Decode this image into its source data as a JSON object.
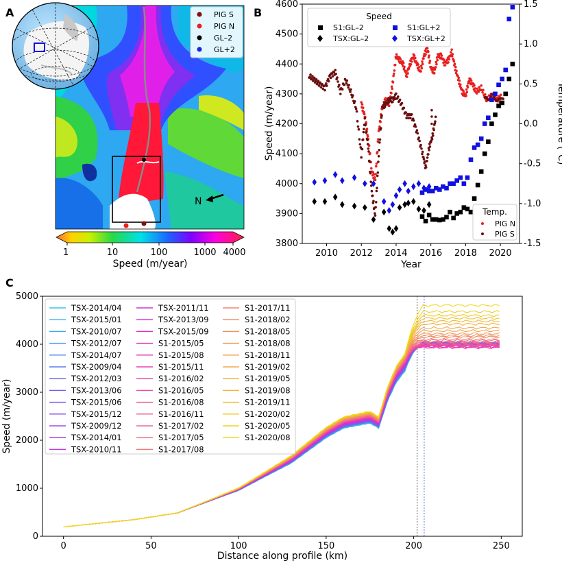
{
  "panel_labels": {
    "a": "A",
    "b": "B",
    "c": "C"
  },
  "map_panel": {
    "legend": [
      "PIG S",
      "PIG N",
      "GL–2",
      "GL+2"
    ],
    "legend_colors": [
      "#7a1010",
      "#e82020",
      "#000000",
      "#2020e0"
    ],
    "north_label": "N",
    "colorbar_label": "Speed (m/year)",
    "colorbar_ticks": [
      "1",
      "10",
      "100",
      "1000",
      "4000"
    ]
  },
  "chart_data": [
    {
      "type": "scatter",
      "panel": "B",
      "xlabel": "Year",
      "ylabel": "Speed (m/year)",
      "y2label": "Temperature (°C)",
      "xlim": [
        2008.6,
        2021.1
      ],
      "ylim": [
        3800,
        4600
      ],
      "y2lim": [
        -1.5,
        1.5
      ],
      "xticks": [
        2010,
        2012,
        2014,
        2016,
        2018,
        2020
      ],
      "yticks": [
        3800,
        3900,
        4000,
        4100,
        4200,
        4300,
        4400,
        4500,
        4600
      ],
      "y2ticks": [
        -1.5,
        -1.0,
        -0.5,
        0.0,
        0.5,
        1.0,
        1.5
      ],
      "legend_speed_title": "Speed",
      "legend_temp_title": "Temp.",
      "speed_series": [
        {
          "name": "S1:GL–2",
          "marker": "square",
          "color": "#000000",
          "x": [
            2015.5,
            2015.7,
            2015.9,
            2016.1,
            2016.3,
            2016.5,
            2016.7,
            2016.9,
            2017.1,
            2017.3,
            2017.5,
            2017.7,
            2017.9,
            2018.1,
            2018.3,
            2018.5,
            2018.7,
            2018.9,
            2019.1,
            2019.3,
            2019.5,
            2019.7,
            2019.9,
            2020.1,
            2020.3,
            2020.5,
            2020.7
          ],
          "y": [
            3890,
            3875,
            3895,
            3880,
            3880,
            3878,
            3880,
            3888,
            3905,
            3885,
            3900,
            3905,
            3920,
            3915,
            3905,
            3950,
            3995,
            4040,
            4100,
            4140,
            4200,
            4230,
            4260,
            4270,
            4300,
            4350,
            4400
          ]
        },
        {
          "name": "TSX:GL–2",
          "marker": "diamond",
          "color": "#000000",
          "x": [
            2009.3,
            2009.9,
            2010.5,
            2010.9,
            2011.6,
            2012.2,
            2012.7,
            2013.3,
            2013.6,
            2013.8,
            2014.0,
            2014.2,
            2014.5,
            2014.7,
            2015.0,
            2015.3,
            2015.6,
            2015.9
          ],
          "y": [
            3940,
            3940,
            3955,
            3930,
            3925,
            3920,
            3880,
            3905,
            3850,
            3838,
            3850,
            3920,
            3930,
            3935,
            3940,
            3915,
            3910,
            3930
          ]
        },
        {
          "name": "S1:GL+2",
          "marker": "square",
          "color": "#1010e0",
          "x": [
            2015.5,
            2015.7,
            2015.9,
            2016.1,
            2016.3,
            2016.5,
            2016.7,
            2016.9,
            2017.1,
            2017.3,
            2017.5,
            2017.7,
            2017.9,
            2018.1,
            2018.3,
            2018.5,
            2018.7,
            2018.9,
            2019.1,
            2019.3,
            2019.5,
            2019.7,
            2019.9,
            2020.1,
            2020.3,
            2020.5,
            2020.7
          ],
          "y": [
            3970,
            3980,
            3975,
            3975,
            3985,
            3980,
            3990,
            3985,
            4000,
            4000,
            4010,
            4020,
            4000,
            4020,
            4080,
            4120,
            4130,
            4150,
            4200,
            4220,
            4280,
            4300,
            4330,
            4350,
            4380,
            4550,
            4590
          ]
        },
        {
          "name": "TSX:GL+2",
          "marker": "diamond",
          "color": "#1010e0",
          "x": [
            2009.3,
            2009.9,
            2010.5,
            2010.9,
            2011.6,
            2012.2,
            2012.7,
            2013.3,
            2013.6,
            2013.8,
            2014.0,
            2014.2,
            2014.5,
            2014.7,
            2015.0,
            2015.3,
            2015.6,
            2015.9
          ],
          "y": [
            4005,
            4010,
            4030,
            4010,
            4020,
            4000,
            4000,
            3940,
            3910,
            3930,
            3960,
            3980,
            4000,
            3975,
            3990,
            4000,
            3985,
            3990
          ]
        }
      ],
      "temperature_series": [
        {
          "name": "PIG N",
          "color": "#e82020",
          "x": [
            2012.0,
            2012.2,
            2012.4,
            2012.6,
            2012.8,
            2013.0,
            2013.2,
            2013.4,
            2013.6,
            2013.8,
            2014.0,
            2014.2,
            2014.4,
            2014.6,
            2014.8,
            2015.0,
            2015.2,
            2015.4,
            2015.6,
            2015.8,
            2016.0,
            2016.2,
            2016.4,
            2016.6,
            2016.8,
            2017.0,
            2017.2,
            2017.4,
            2017.6,
            2017.8,
            2018.0,
            2018.2,
            2018.4,
            2018.6,
            2018.9,
            2019.2,
            2019.5,
            2019.8,
            2020.1
          ],
          "y": [
            0.25,
            0.1,
            -0.2,
            -0.6,
            -0.7,
            -0.1,
            0.2,
            0.3,
            0.25,
            0.5,
            0.85,
            0.8,
            0.75,
            0.6,
            0.75,
            0.85,
            0.75,
            0.65,
            0.85,
            0.95,
            0.7,
            0.65,
            0.85,
            0.85,
            0.75,
            0.8,
            0.9,
            0.7,
            0.55,
            0.4,
            0.35,
            0.55,
            0.5,
            0.4,
            0.45,
            0.3,
            0.35,
            0.3,
            0.35
          ]
        },
        {
          "name": "PIG S",
          "color": "#6a0e0e",
          "x": [
            2009.0,
            2009.3,
            2009.6,
            2009.9,
            2010.2,
            2010.5,
            2010.8,
            2011.1,
            2011.4,
            2011.7,
            2012.0,
            2012.2,
            2012.4,
            2012.6,
            2012.8,
            2013.0,
            2013.2,
            2013.4,
            2013.6,
            2013.8,
            2014.0,
            2014.3,
            2014.6,
            2014.9,
            2015.2,
            2015.5,
            2015.7,
            2015.9,
            2016.1,
            2016.3,
            2019.1,
            2019.5,
            2019.9,
            2020.2
          ],
          "y": [
            0.6,
            0.55,
            0.5,
            0.45,
            0.6,
            0.65,
            0.4,
            0.55,
            0.4,
            0.2,
            -0.4,
            0.05,
            -0.3,
            -0.85,
            -1.15,
            -0.4,
            0.2,
            0.25,
            0.3,
            0.3,
            0.35,
            0.25,
            0.1,
            0.1,
            -0.1,
            -0.35,
            -0.55,
            -0.3,
            -0.15,
            0.1,
            0.3,
            0.35,
            0.3,
            0.3
          ]
        }
      ]
    },
    {
      "type": "line",
      "panel": "C",
      "xlabel": "Distance along profile (km)",
      "ylabel": "Speed (m/year)",
      "xlim": [
        -12,
        262
      ],
      "ylim": [
        0,
        5000
      ],
      "xticks": [
        0,
        50,
        100,
        150,
        200,
        250
      ],
      "yticks": [
        0,
        1000,
        2000,
        3000,
        4000,
        5000
      ],
      "vlines": [
        202,
        206
      ],
      "shape_x": [
        0,
        40,
        65,
        100,
        130,
        150,
        160,
        175,
        180,
        185,
        190,
        195,
        200,
        205,
        250
      ],
      "shape_base": [
        195,
        345,
        485,
        980,
        1600,
        2160,
        2370,
        2480,
        2370,
        2960,
        3370,
        3620,
        3850,
        3960,
        4000
      ],
      "series": [
        {
          "name": "TSX-2014/04",
          "color": "#30c8e8",
          "plateau": 4015
        },
        {
          "name": "TSX-2015/01",
          "color": "#38b8ec",
          "plateau": 4005
        },
        {
          "name": "TSX-2010/07",
          "color": "#40a8f0",
          "plateau": 4020
        },
        {
          "name": "TSX-2012/07",
          "color": "#5098f0",
          "plateau": 4010
        },
        {
          "name": "TSX-2014/07",
          "color": "#5888f0",
          "plateau": 4000
        },
        {
          "name": "TSX-2009/04",
          "color": "#6078ec",
          "plateau": 3995
        },
        {
          "name": "TSX-2012/03",
          "color": "#6868e8",
          "plateau": 4030
        },
        {
          "name": "TSX-2013/06",
          "color": "#7060e8",
          "plateau": 4010
        },
        {
          "name": "TSX-2015/06",
          "color": "#8058e8",
          "plateau": 4025
        },
        {
          "name": "TSX-2015/12",
          "color": "#9050e8",
          "plateau": 4000
        },
        {
          "name": "TSX-2009/12",
          "color": "#a048e8",
          "plateau": 4040
        },
        {
          "name": "TSX-2014/01",
          "color": "#b040e4",
          "plateau": 4015
        },
        {
          "name": "TSX-2010/11",
          "color": "#c038e0",
          "plateau": 4005
        },
        {
          "name": "TSX-2011/11",
          "color": "#c838d8",
          "plateau": 3980
        },
        {
          "name": "TSX-2013/09",
          "color": "#d030d0",
          "plateau": 3960
        },
        {
          "name": "TSX-2015/09",
          "color": "#d830c8",
          "plateau": 3990
        },
        {
          "name": "S1-2015/05",
          "color": "#e030c0",
          "plateau": 3940
        },
        {
          "name": "S1-2015/08",
          "color": "#e838b8",
          "plateau": 3950
        },
        {
          "name": "S1-2015/11",
          "color": "#e840b0",
          "plateau": 3930
        },
        {
          "name": "S1-2016/02",
          "color": "#ec48a8",
          "plateau": 3960
        },
        {
          "name": "S1-2016/05",
          "color": "#ec50a0",
          "plateau": 3970
        },
        {
          "name": "S1-2016/08",
          "color": "#ee5898",
          "plateau": 3980
        },
        {
          "name": "S1-2016/11",
          "color": "#f06090",
          "plateau": 4000
        },
        {
          "name": "S1-2017/02",
          "color": "#f06888",
          "plateau": 4020
        },
        {
          "name": "S1-2017/05",
          "color": "#f07080",
          "plateau": 4050
        },
        {
          "name": "S1-2017/08",
          "color": "#f07878",
          "plateau": 4080
        },
        {
          "name": "S1-2017/11",
          "color": "#f08070",
          "plateau": 4100
        },
        {
          "name": "S1-2018/02",
          "color": "#f08868",
          "plateau": 4150
        },
        {
          "name": "S1-2018/05",
          "color": "#f09060",
          "plateau": 4180
        },
        {
          "name": "S1-2018/08",
          "color": "#f09858",
          "plateau": 4220
        },
        {
          "name": "S1-2018/11",
          "color": "#f0a050",
          "plateau": 4280
        },
        {
          "name": "S1-2019/02",
          "color": "#f0a848",
          "plateau": 4340
        },
        {
          "name": "S1-2019/05",
          "color": "#f0b040",
          "plateau": 4420
        },
        {
          "name": "S1-2019/08",
          "color": "#f0b838",
          "plateau": 4480
        },
        {
          "name": "S1-2019/11",
          "color": "#f0c030",
          "plateau": 4540
        },
        {
          "name": "S1-2020/02",
          "color": "#f0c828",
          "plateau": 4600
        },
        {
          "name": "S1-2020/05",
          "color": "#f0d020",
          "plateau": 4680
        },
        {
          "name": "S1-2020/08",
          "color": "#f4d818",
          "plateau": 4810
        }
      ]
    }
  ]
}
